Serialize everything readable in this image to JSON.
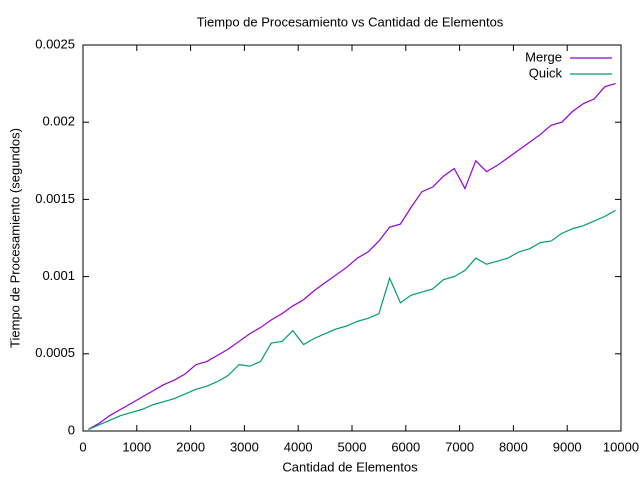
{
  "chart_data": {
    "type": "line",
    "title": "Tiempo de Procesamiento vs Cantidad de Elementos",
    "x_label": "Cantidad de Elementos",
    "y_label": "Tiempo de Procesamiento (segundos)",
    "x": [
      100,
      300,
      500,
      700,
      900,
      1100,
      1300,
      1500,
      1700,
      1900,
      2100,
      2300,
      2500,
      2700,
      2900,
      3100,
      3300,
      3500,
      3700,
      3900,
      4100,
      4300,
      4500,
      4700,
      4900,
      5100,
      5300,
      5500,
      5700,
      5900,
      6100,
      6300,
      6500,
      6700,
      6900,
      7100,
      7300,
      7500,
      7700,
      7900,
      8100,
      8300,
      8500,
      8700,
      8900,
      9100,
      9300,
      9500,
      9700,
      9900
    ],
    "series": [
      {
        "name": "Merge",
        "color": "#9400d3",
        "values": [
          1e-05,
          5e-05,
          0.0001,
          0.00014,
          0.00018,
          0.00022,
          0.00026,
          0.0003,
          0.00033,
          0.00037,
          0.00043,
          0.00045,
          0.00049,
          0.00053,
          0.00058,
          0.00063,
          0.00067,
          0.00072,
          0.00076,
          0.00081,
          0.00085,
          0.00091,
          0.00096,
          0.00101,
          0.00106,
          0.00112,
          0.00116,
          0.00123,
          0.00132,
          0.00134,
          0.00145,
          0.00155,
          0.00158,
          0.00165,
          0.0017,
          0.00157,
          0.00175,
          0.00168,
          0.00172,
          0.00177,
          0.00182,
          0.00187,
          0.00192,
          0.00198,
          0.002,
          0.00207,
          0.00212,
          0.00215,
          0.00223,
          0.00225
        ]
      },
      {
        "name": "Quick",
        "color": "#009e73",
        "values": [
          1e-05,
          4e-05,
          7e-05,
          0.0001,
          0.00012,
          0.00014,
          0.00017,
          0.00019,
          0.00021,
          0.00024,
          0.00027,
          0.00029,
          0.00032,
          0.00036,
          0.00043,
          0.00042,
          0.00045,
          0.00057,
          0.00058,
          0.00065,
          0.00056,
          0.0006,
          0.00063,
          0.00066,
          0.00068,
          0.00071,
          0.00073,
          0.00076,
          0.00099,
          0.00083,
          0.00088,
          0.0009,
          0.00092,
          0.00098,
          0.001,
          0.00104,
          0.00112,
          0.00108,
          0.0011,
          0.00112,
          0.00116,
          0.00118,
          0.00122,
          0.00123,
          0.00128,
          0.00131,
          0.00133,
          0.00136,
          0.00139,
          0.00143
        ]
      }
    ],
    "xlim": [
      0,
      10000
    ],
    "xticks": [
      0,
      1000,
      2000,
      3000,
      4000,
      5000,
      6000,
      7000,
      8000,
      9000,
      10000
    ],
    "ylim": [
      0,
      0.0025
    ],
    "yticks": [
      0,
      0.0005,
      0.001,
      0.0015,
      0.002,
      0.0025
    ],
    "legend": "top-right"
  }
}
